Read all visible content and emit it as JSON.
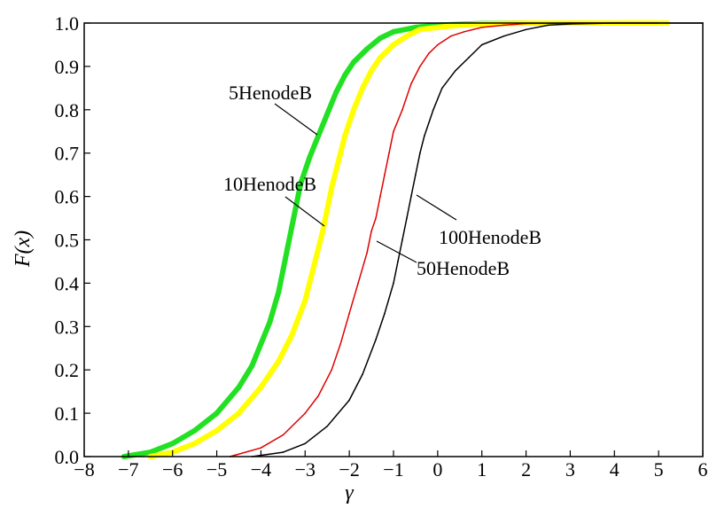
{
  "chart_data": {
    "type": "line",
    "title": "",
    "xlabel": "γ",
    "ylabel": "F(x)",
    "xlim": [
      -8,
      6
    ],
    "ylim": [
      0,
      1
    ],
    "x_ticks": [
      -8,
      -7,
      -6,
      -5,
      -4,
      -3,
      -2,
      -1,
      0,
      1,
      2,
      3,
      4,
      5,
      6
    ],
    "x_tick_labels": [
      "−8",
      "−7",
      "−6",
      "−5",
      "−4",
      "−3",
      "−2",
      "−1",
      "0",
      "1",
      "2",
      "3",
      "4",
      "5",
      "6"
    ],
    "y_ticks": [
      0,
      0.1,
      0.2,
      0.3,
      0.4,
      0.5,
      0.6,
      0.7,
      0.8,
      0.9,
      1.0
    ],
    "y_tick_labels": [
      "0.0",
      "0.1",
      "0.2",
      "0.3",
      "0.4",
      "0.5",
      "0.6",
      "0.7",
      "0.8",
      "0.9",
      "1.0"
    ],
    "grid": false,
    "legend": "annotations",
    "series": [
      {
        "name": "5HenodeB",
        "color": "#22e022",
        "x": [
          -7.1,
          -6.5,
          -6.0,
          -5.5,
          -5.0,
          -4.5,
          -4.2,
          -4.0,
          -3.8,
          -3.6,
          -3.5,
          -3.4,
          -3.3,
          -3.2,
          -3.1,
          -3.0,
          -2.9,
          -2.7,
          -2.5,
          -2.3,
          -2.1,
          -1.9,
          -1.6,
          -1.3,
          -1.0,
          -0.5,
          0.0,
          1.0,
          2.0,
          3.0,
          4.3
        ],
        "y": [
          0.0,
          0.01,
          0.03,
          0.06,
          0.1,
          0.16,
          0.21,
          0.26,
          0.31,
          0.38,
          0.43,
          0.48,
          0.53,
          0.58,
          0.63,
          0.66,
          0.69,
          0.74,
          0.79,
          0.84,
          0.88,
          0.91,
          0.94,
          0.965,
          0.98,
          0.99,
          0.995,
          0.999,
          1.0,
          1.0,
          1.0
        ]
      },
      {
        "name": "10HenodeB",
        "color": "#ffff00",
        "x": [
          -6.5,
          -6.0,
          -5.5,
          -5.0,
          -4.5,
          -4.0,
          -3.6,
          -3.3,
          -3.0,
          -2.9,
          -2.8,
          -2.7,
          -2.6,
          -2.5,
          -2.4,
          -2.3,
          -2.2,
          -2.1,
          -1.9,
          -1.7,
          -1.5,
          -1.3,
          -1.0,
          -0.7,
          -0.4,
          0.0,
          0.5,
          1.0,
          2.0,
          3.0,
          5.2
        ],
        "y": [
          0.0,
          0.01,
          0.03,
          0.06,
          0.1,
          0.16,
          0.22,
          0.28,
          0.36,
          0.4,
          0.44,
          0.48,
          0.52,
          0.57,
          0.62,
          0.66,
          0.7,
          0.74,
          0.8,
          0.85,
          0.89,
          0.92,
          0.95,
          0.97,
          0.985,
          0.99,
          0.995,
          0.998,
          1.0,
          1.0,
          1.0
        ]
      },
      {
        "name": "50HenodeB",
        "color": "#e00000",
        "x": [
          -4.7,
          -4.0,
          -3.5,
          -3.0,
          -2.7,
          -2.4,
          -2.2,
          -2.0,
          -1.8,
          -1.6,
          -1.5,
          -1.4,
          -1.3,
          -1.2,
          -1.1,
          -1.0,
          -0.8,
          -0.6,
          -0.4,
          -0.2,
          0.0,
          0.3,
          0.6,
          1.0,
          1.5,
          2.0,
          3.0,
          5.0
        ],
        "y": [
          0.0,
          0.02,
          0.05,
          0.1,
          0.14,
          0.2,
          0.26,
          0.33,
          0.4,
          0.47,
          0.52,
          0.55,
          0.6,
          0.65,
          0.7,
          0.75,
          0.8,
          0.86,
          0.9,
          0.93,
          0.95,
          0.97,
          0.98,
          0.99,
          0.995,
          0.999,
          1.0,
          1.0
        ]
      },
      {
        "name": "100HenodeB",
        "color": "#000000",
        "x": [
          -4.2,
          -3.5,
          -3.0,
          -2.5,
          -2.0,
          -1.7,
          -1.4,
          -1.2,
          -1.0,
          -0.9,
          -0.8,
          -0.7,
          -0.6,
          -0.5,
          -0.4,
          -0.3,
          -0.2,
          -0.1,
          0.1,
          0.4,
          0.7,
          1.0,
          1.5,
          2.0,
          2.5,
          3.0,
          4.0,
          6.0
        ],
        "y": [
          0.0,
          0.01,
          0.03,
          0.07,
          0.13,
          0.19,
          0.27,
          0.33,
          0.4,
          0.45,
          0.5,
          0.55,
          0.6,
          0.65,
          0.7,
          0.74,
          0.77,
          0.8,
          0.85,
          0.89,
          0.92,
          0.95,
          0.97,
          0.985,
          0.995,
          0.998,
          1.0,
          1.0
        ]
      }
    ],
    "annotations": [
      {
        "text": "5HenodeB",
        "series": "5HenodeB"
      },
      {
        "text": "10HenodeB",
        "series": "10HenodeB"
      },
      {
        "text": "50HenodeB",
        "series": "50HenodeB"
      },
      {
        "text": "100HenodeB",
        "series": "100HenodeB"
      }
    ]
  }
}
